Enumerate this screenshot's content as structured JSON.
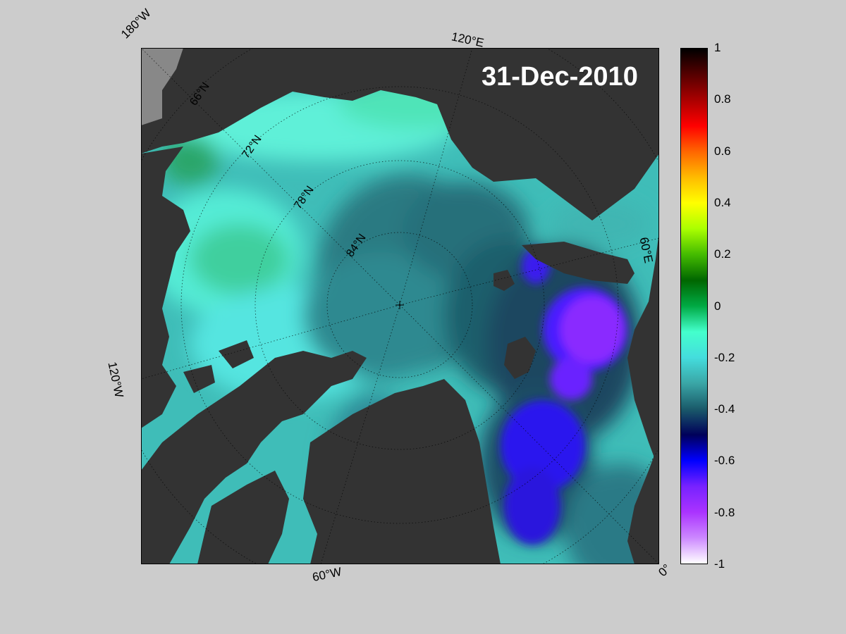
{
  "date": "31-Dec-2010",
  "map": {
    "projection": "north-polar-stereographic",
    "longitude_labels": [
      "180°W",
      "120°E",
      "60°E",
      "0°",
      "60°W",
      "120°W"
    ],
    "latitude_labels": [
      "66°N",
      "72°N",
      "78°N",
      "84°N"
    ],
    "colors": {
      "land": "#333333",
      "background": "#cccccc",
      "frame_gray": "#888888"
    }
  },
  "colorbar": {
    "min": -1,
    "max": 1,
    "tick_labels": [
      "1",
      "0.8",
      "0.6",
      "0.4",
      "0.2",
      "0",
      "-0.2",
      "-0.4",
      "-0.6",
      "-0.8",
      "-1"
    ],
    "colormap": [
      "#000000",
      "#550000",
      "#aa0000",
      "#ff0000",
      "#ff6600",
      "#ffbb00",
      "#ffff00",
      "#aaff00",
      "#44bb00",
      "#006600",
      "#00aa44",
      "#44ffcc",
      "#44dddd",
      "#3aa6a6",
      "#1a5a6a",
      "#00005a",
      "#0000ff",
      "#7722ff",
      "#aa33ff",
      "#cc88ff",
      "#ffffff"
    ]
  }
}
